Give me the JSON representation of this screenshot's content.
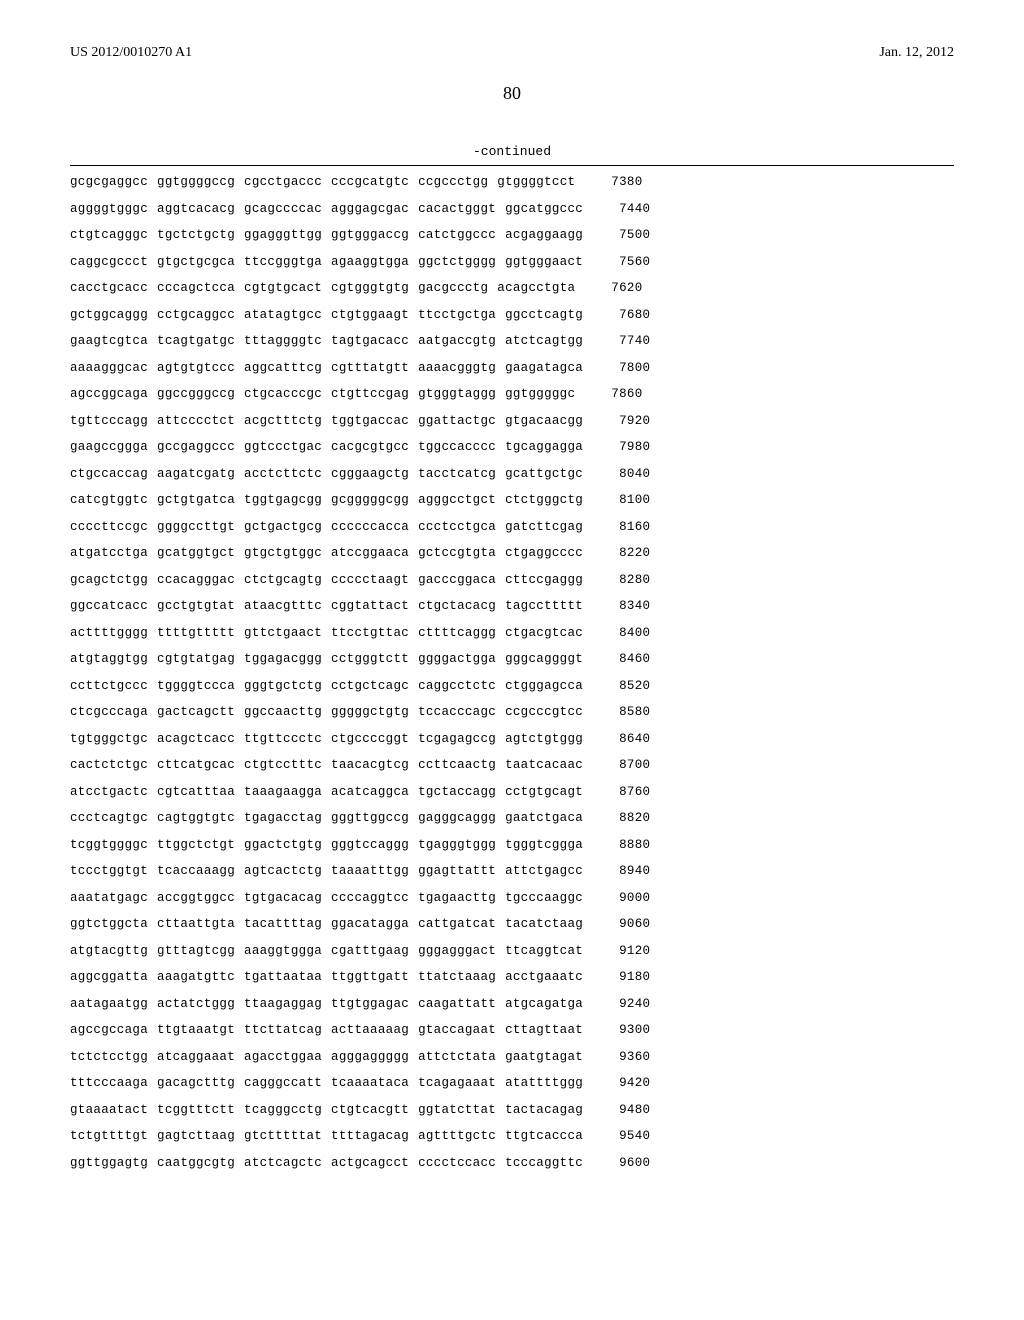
{
  "header": {
    "publication_id": "US 2012/0010270 A1",
    "publication_date": "Jan. 12, 2012"
  },
  "page_number": "80",
  "continued_label": "-continued",
  "sequence": {
    "font_family": "Courier New",
    "font_size_pt": 9,
    "text_color": "#000000",
    "background_color": "#ffffff",
    "rows": [
      {
        "groups": [
          "gcgcgaggcc",
          "ggtggggccg",
          "cgcctgaccc",
          "cccgcatgtc",
          "ccgccctgg",
          "gtggggtcct"
        ],
        "pos": "7380"
      },
      {
        "groups": [
          "aggggtgggc",
          "aggtcacacg",
          "gcagccccac",
          "agggagcgac",
          "cacactgggt",
          "ggcatggccc"
        ],
        "pos": "7440"
      },
      {
        "groups": [
          "ctgtcagggc",
          "tgctctgctg",
          "ggagggttgg",
          "ggtgggaccg",
          "catctggccc",
          "acgaggaagg"
        ],
        "pos": "7500"
      },
      {
        "groups": [
          "caggcgccct",
          "gtgctgcgca",
          "ttccgggtga",
          "agaaggtgga",
          "ggctctgggg",
          "ggtgggaact"
        ],
        "pos": "7560"
      },
      {
        "groups": [
          "cacctgcacc",
          "cccagctcca",
          "cgtgtgcact",
          "cgtgggtgtg",
          "gacgccctg",
          "acagcctgta"
        ],
        "pos": "7620"
      },
      {
        "groups": [
          "gctggcaggg",
          "cctgcaggcc",
          "atatagtgcc",
          "ctgtggaagt",
          "ttcctgctga",
          "ggcctcagtg"
        ],
        "pos": "7680"
      },
      {
        "groups": [
          "gaagtcgtca",
          "tcagtgatgc",
          "tttaggggtc",
          "tagtgacacc",
          "aatgaccgtg",
          "atctcagtgg"
        ],
        "pos": "7740"
      },
      {
        "groups": [
          "aaaagggcac",
          "agtgtgtccc",
          "aggcatttcg",
          "cgtttatgtt",
          "aaaacgggtg",
          "gaagatagca"
        ],
        "pos": "7800"
      },
      {
        "groups": [
          "agccggcaga",
          "ggccgggccg",
          "ctgcacccgc",
          "ctgttccgag",
          "gtgggtaggg",
          "ggtgggggc"
        ],
        "pos": "7860"
      },
      {
        "groups": [
          "tgttcccagg",
          "attcccctct",
          "acgctttctg",
          "tggtgaccac",
          "ggattactgc",
          "gtgacaacgg"
        ],
        "pos": "7920"
      },
      {
        "groups": [
          "gaagccggga",
          "gccgaggccc",
          "ggtccctgac",
          "cacgcgtgcc",
          "tggccacccc",
          "tgcaggagga"
        ],
        "pos": "7980"
      },
      {
        "groups": [
          "ctgccaccag",
          "aagatcgatg",
          "acctcttctc",
          "cgggaagctg",
          "tacctcatcg",
          "gcattgctgc"
        ],
        "pos": "8040"
      },
      {
        "groups": [
          "catcgtggtc",
          "gctgtgatca",
          "tggtgagcgg",
          "gcgggggcgg",
          "agggcctgct",
          "ctctgggctg"
        ],
        "pos": "8100"
      },
      {
        "groups": [
          "ccccttccgc",
          "ggggccttgt",
          "gctgactgcg",
          "ccccccacca",
          "ccctcctgca",
          "gatcttcgag"
        ],
        "pos": "8160"
      },
      {
        "groups": [
          "atgatcctga",
          "gcatggtgct",
          "gtgctgtggc",
          "atccggaaca",
          "gctccgtgta",
          "ctgaggcccc"
        ],
        "pos": "8220"
      },
      {
        "groups": [
          "gcagctctgg",
          "ccacagggac",
          "ctctgcagtg",
          "ccccctaagt",
          "gacccggaca",
          "cttccgaggg"
        ],
        "pos": "8280"
      },
      {
        "groups": [
          "ggccatcacc",
          "gcctgtgtat",
          "ataacgtttc",
          "cggtattact",
          "ctgctacacg",
          "tagccttttt"
        ],
        "pos": "8340"
      },
      {
        "groups": [
          "acttttgggg",
          "ttttgttttt",
          "gttctgaact",
          "ttcctgttac",
          "cttttcaggg",
          "ctgacgtcac"
        ],
        "pos": "8400"
      },
      {
        "groups": [
          "atgtaggtgg",
          "cgtgtatgag",
          "tggagacggg",
          "cctgggtctt",
          "ggggactgga",
          "gggcaggggt"
        ],
        "pos": "8460"
      },
      {
        "groups": [
          "ccttctgccc",
          "tggggtccca",
          "gggtgctctg",
          "cctgctcagc",
          "caggcctctc",
          "ctgggagcca"
        ],
        "pos": "8520"
      },
      {
        "groups": [
          "ctcgcccaga",
          "gactcagctt",
          "ggccaacttg",
          "gggggctgtg",
          "tccacccagc",
          "ccgcccgtcc"
        ],
        "pos": "8580"
      },
      {
        "groups": [
          "tgtgggctgc",
          "acagctcacc",
          "ttgttccctc",
          "ctgccccggt",
          "tcgagagccg",
          "agtctgtggg"
        ],
        "pos": "8640"
      },
      {
        "groups": [
          "cactctctgc",
          "cttcatgcac",
          "ctgtcctttc",
          "taacacgtcg",
          "ccttcaactg",
          "taatcacaac"
        ],
        "pos": "8700"
      },
      {
        "groups": [
          "atcctgactc",
          "cgtcatttaa",
          "taaagaagga",
          "acatcaggca",
          "tgctaccagg",
          "cctgtgcagt"
        ],
        "pos": "8760"
      },
      {
        "groups": [
          "ccctcagtgc",
          "cagtggtgtc",
          "tgagacctag",
          "gggttggccg",
          "gagggcaggg",
          "gaatctgaca"
        ],
        "pos": "8820"
      },
      {
        "groups": [
          "tcggtggggc",
          "ttggctctgt",
          "ggactctgtg",
          "gggtccaggg",
          "tgagggtggg",
          "tgggtcggga"
        ],
        "pos": "8880"
      },
      {
        "groups": [
          "tccctggtgt",
          "tcaccaaagg",
          "agtcactctg",
          "taaaatttgg",
          "ggagttattt",
          "attctgagcc"
        ],
        "pos": "8940"
      },
      {
        "groups": [
          "aaatatgagc",
          "accggtggcc",
          "tgtgacacag",
          "ccccaggtcc",
          "tgagaacttg",
          "tgcccaaggc"
        ],
        "pos": "9000"
      },
      {
        "groups": [
          "ggtctggcta",
          "cttaattgta",
          "tacattttag",
          "ggacatagga",
          "cattgatcat",
          "tacatctaag"
        ],
        "pos": "9060"
      },
      {
        "groups": [
          "atgtacgttg",
          "gtttagtcgg",
          "aaaggtggga",
          "cgatttgaag",
          "gggagggact",
          "ttcaggtcat"
        ],
        "pos": "9120"
      },
      {
        "groups": [
          "aggcggatta",
          "aaagatgttc",
          "tgattaataa",
          "ttggttgatt",
          "ttatctaaag",
          "acctgaaatc"
        ],
        "pos": "9180"
      },
      {
        "groups": [
          "aatagaatgg",
          "actatctggg",
          "ttaagaggag",
          "ttgtggagac",
          "caagattatt",
          "atgcagatga"
        ],
        "pos": "9240"
      },
      {
        "groups": [
          "agccgccaga",
          "ttgtaaatgt",
          "ttcttatcag",
          "acttaaaaag",
          "gtaccagaat",
          "cttagttaat"
        ],
        "pos": "9300"
      },
      {
        "groups": [
          "tctctcctgg",
          "atcaggaaat",
          "agacctggaa",
          "agggaggggg",
          "attctctata",
          "gaatgtagat"
        ],
        "pos": "9360"
      },
      {
        "groups": [
          "tttcccaaga",
          "gacagctttg",
          "cagggccatt",
          "tcaaaataca",
          "tcagagaaat",
          "atattttggg"
        ],
        "pos": "9420"
      },
      {
        "groups": [
          "gtaaaatact",
          "tcggtttctt",
          "tcagggcctg",
          "ctgtcacgtt",
          "ggtatcttat",
          "tactacagag"
        ],
        "pos": "9480"
      },
      {
        "groups": [
          "tctgttttgt",
          "gagtcttaag",
          "gtctttttat",
          "ttttagacag",
          "agttttgctc",
          "ttgtcaccca"
        ],
        "pos": "9540"
      },
      {
        "groups": [
          "ggttggagtg",
          "caatggcgtg",
          "atctcagctc",
          "actgcagcct",
          "cccctccacc",
          "tcccaggttc"
        ],
        "pos": "9600"
      }
    ]
  }
}
